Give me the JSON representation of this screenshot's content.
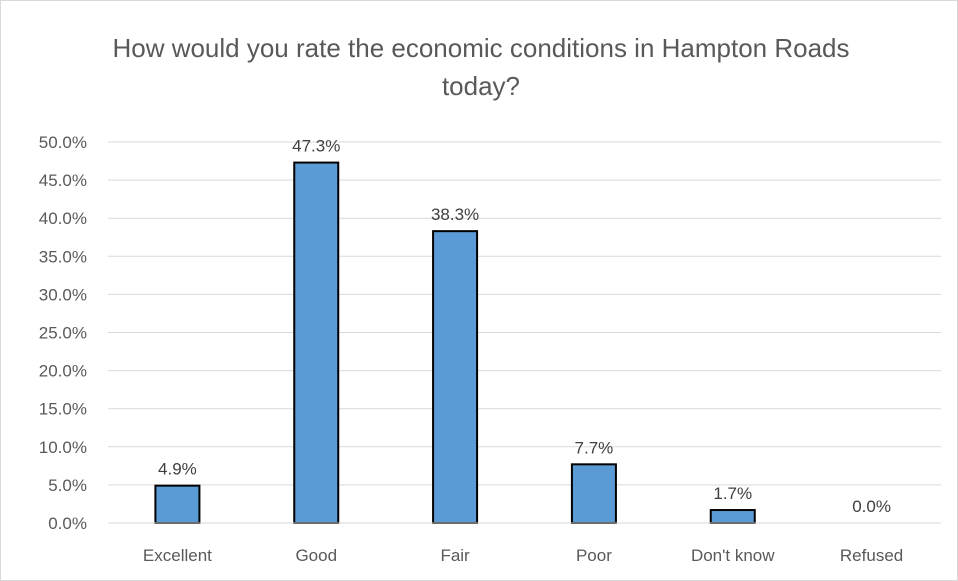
{
  "chart_data": {
    "type": "bar",
    "title": "How would you rate the economic conditions in Hampton Roads today?",
    "categories": [
      "Excellent",
      "Good",
      "Fair",
      "Poor",
      "Don't know",
      "Refused"
    ],
    "values": [
      4.9,
      47.3,
      38.3,
      7.7,
      1.7,
      0.0
    ],
    "data_labels": [
      "4.9%",
      "47.3%",
      "38.3%",
      "7.7%",
      "1.7%",
      "0.0%"
    ],
    "ylim": [
      0,
      50
    ],
    "y_ticks": [
      0,
      5,
      10,
      15,
      20,
      25,
      30,
      35,
      40,
      45,
      50
    ],
    "y_tick_labels": [
      "0.0%",
      "5.0%",
      "10.0%",
      "15.0%",
      "20.0%",
      "25.0%",
      "30.0%",
      "35.0%",
      "40.0%",
      "45.0%",
      "50.0%"
    ],
    "xlabel": "",
    "ylabel": "",
    "grid": true,
    "legend": "none",
    "colors": {
      "bar_fill": "#5b9bd5",
      "bar_stroke": "#000000",
      "grid": "#d9d9d9",
      "text": "#595959"
    }
  }
}
